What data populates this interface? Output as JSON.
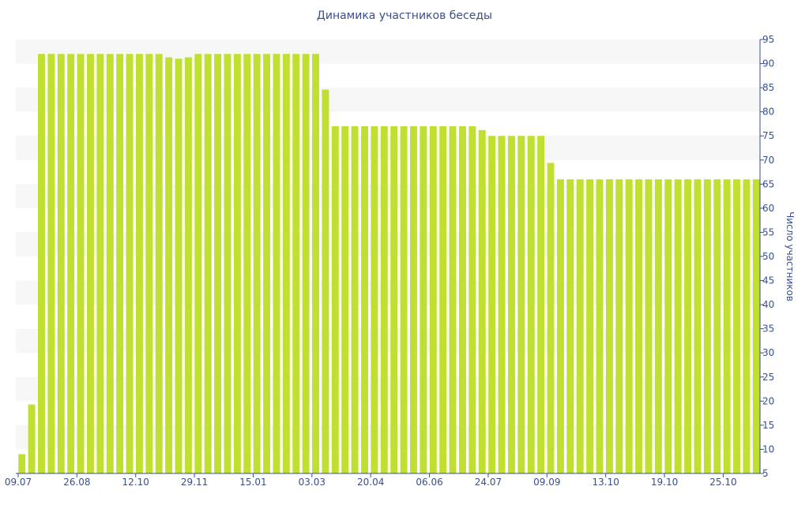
{
  "colors": {
    "bar": "#bfe030",
    "band_light": "#f7f7f7",
    "axis": "#3a4f8a",
    "text": "#3a4f8a"
  },
  "chart_data": {
    "type": "bar",
    "title": "Динамика участников беседы",
    "xlabel": "",
    "ylabel": "Число участников",
    "ylim": [
      5,
      95
    ],
    "y_ticks": [
      5,
      10,
      15,
      20,
      25,
      30,
      35,
      40,
      45,
      50,
      55,
      60,
      65,
      70,
      75,
      80,
      85,
      90,
      95
    ],
    "y_axis_position": "right",
    "grid": "alternating horizontal bands",
    "x_tick_labels": [
      {
        "label": "09.07",
        "index": 0
      },
      {
        "label": "26.08",
        "index": 6
      },
      {
        "label": "12.10",
        "index": 12
      },
      {
        "label": "29.11",
        "index": 18
      },
      {
        "label": "15.01",
        "index": 24
      },
      {
        "label": "03.03",
        "index": 30
      },
      {
        "label": "20.04",
        "index": 36
      },
      {
        "label": "06.06",
        "index": 42
      },
      {
        "label": "24.07",
        "index": 48
      },
      {
        "label": "09.09",
        "index": 54
      },
      {
        "label": "13.10",
        "index": 60
      },
      {
        "label": "19.10",
        "index": 66
      },
      {
        "label": "25.10",
        "index": 72
      }
    ],
    "values": [
      9,
      19.3,
      92,
      92,
      92,
      92,
      92,
      92,
      92,
      92,
      92,
      92,
      92,
      92,
      92,
      91.3,
      91,
      91.3,
      92,
      92,
      92,
      92,
      92,
      92,
      92,
      92,
      92,
      92,
      92,
      92,
      92,
      84.6,
      77,
      77,
      77,
      77,
      77,
      77,
      77,
      77,
      77,
      77,
      77,
      77,
      77,
      77,
      77,
      76.2,
      75,
      75,
      75,
      75,
      75,
      75,
      69.4,
      66,
      66,
      66,
      66,
      66,
      66,
      66,
      66,
      66,
      66,
      66,
      66,
      66,
      66,
      66,
      66,
      66,
      66,
      66,
      66,
      66
    ]
  }
}
